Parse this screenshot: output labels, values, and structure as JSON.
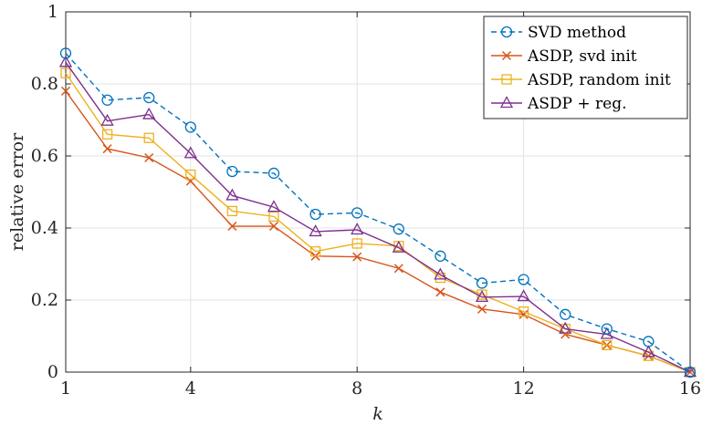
{
  "chart_data": {
    "type": "line",
    "xlabel": "k",
    "ylabel": "relative error",
    "xlim": [
      1,
      16
    ],
    "ylim": [
      0,
      1
    ],
    "xticks": [
      "1",
      "4",
      "8",
      "12",
      "16"
    ],
    "yticks": [
      "0",
      "0.2",
      "0.4",
      "0.6",
      "0.8",
      "1"
    ],
    "grid": true,
    "legend_position": "top-right",
    "x": [
      1,
      2,
      3,
      4,
      5,
      6,
      7,
      8,
      9,
      10,
      11,
      12,
      13,
      14,
      15,
      16
    ],
    "series": [
      {
        "name": "SVD method",
        "color": "#0072BD",
        "marker": "circle",
        "line_style": "dashed",
        "values": [
          0.885,
          0.755,
          0.762,
          0.68,
          0.557,
          0.552,
          0.438,
          0.442,
          0.397,
          0.322,
          0.247,
          0.257,
          0.16,
          0.12,
          0.085,
          0.0
        ]
      },
      {
        "name": "ASDP, svd init",
        "color": "#D95319",
        "marker": "x",
        "line_style": "solid",
        "values": [
          0.78,
          0.62,
          0.595,
          0.53,
          0.405,
          0.405,
          0.322,
          0.32,
          0.288,
          0.222,
          0.175,
          0.16,
          0.105,
          0.075,
          0.045,
          0.0
        ]
      },
      {
        "name": "ASDP, random init",
        "color": "#EDB120",
        "marker": "square",
        "line_style": "solid",
        "values": [
          0.83,
          0.66,
          0.65,
          0.548,
          0.447,
          0.432,
          0.335,
          0.357,
          0.35,
          0.262,
          0.215,
          0.168,
          0.12,
          0.075,
          0.045,
          0.0
        ]
      },
      {
        "name": "ASDP + reg.",
        "color": "#7E2F8E",
        "marker": "triangle",
        "line_style": "solid",
        "values": [
          0.86,
          0.697,
          0.715,
          0.607,
          0.49,
          0.458,
          0.39,
          0.395,
          0.345,
          0.27,
          0.208,
          0.21,
          0.12,
          0.105,
          0.055,
          0.0
        ]
      }
    ]
  }
}
